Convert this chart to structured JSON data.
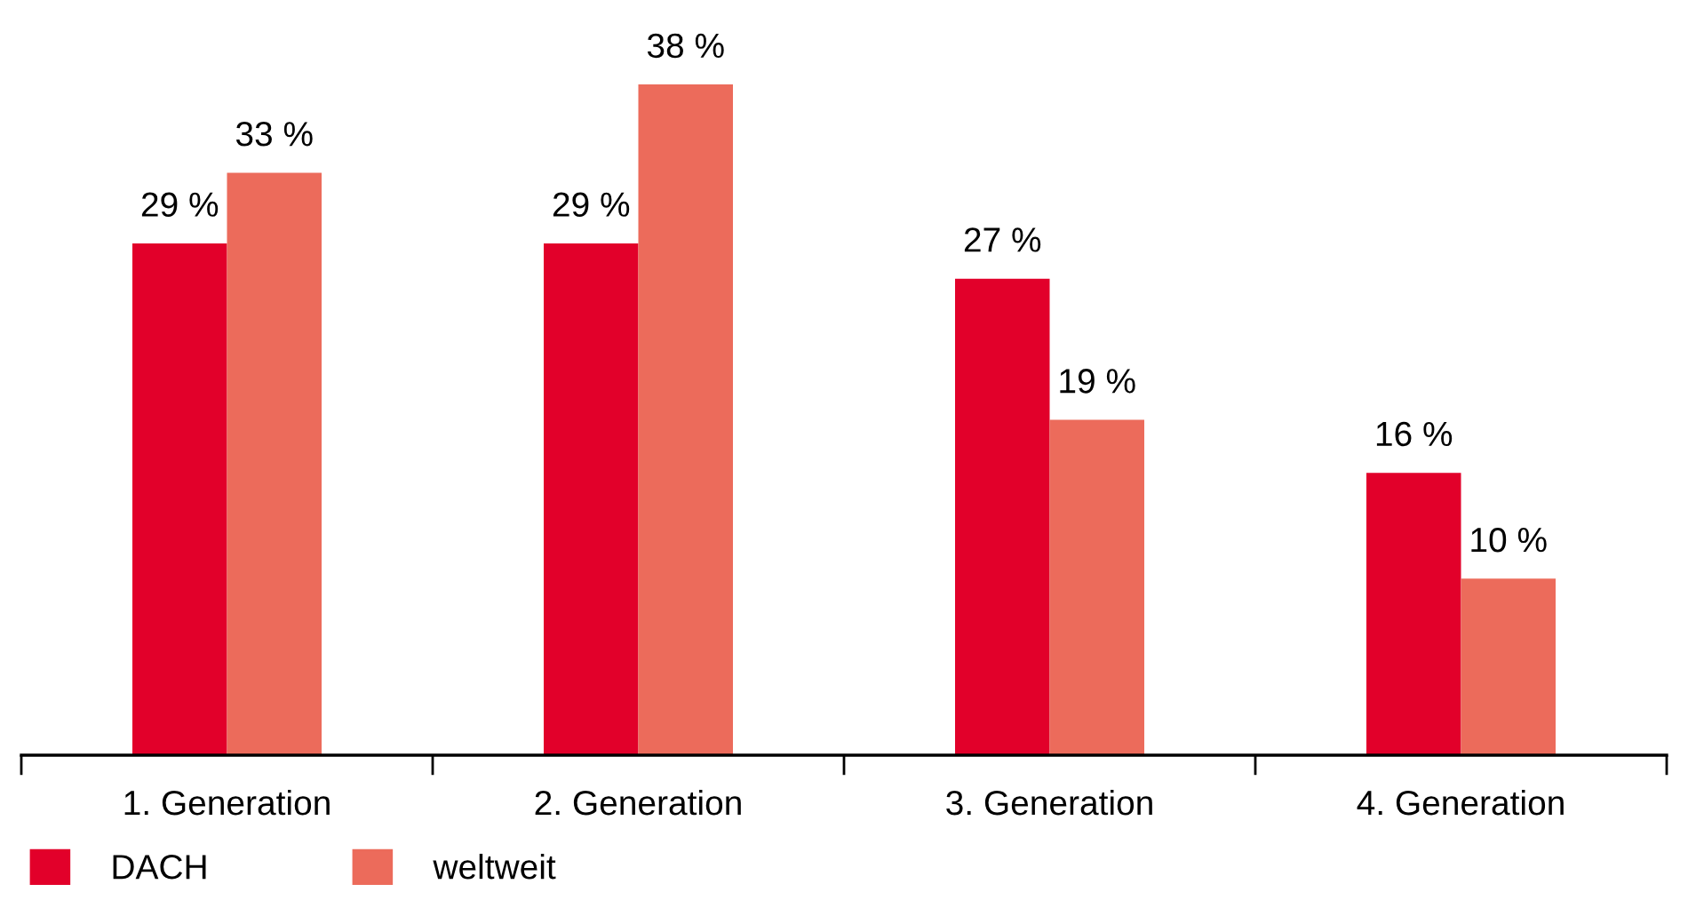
{
  "chart_data": {
    "type": "bar",
    "categories": [
      "1. Generation",
      "2. Generation",
      "3. Generation",
      "4. Generation"
    ],
    "series": [
      {
        "name": "DACH",
        "color": "#e2002a",
        "values": [
          29,
          29,
          27,
          16
        ],
        "value_labels": [
          "29 %",
          "29 %",
          "27 %",
          "16 %"
        ]
      },
      {
        "name": "weltweit",
        "color": "#ec6b5b",
        "values": [
          33,
          38,
          19,
          10
        ],
        "value_labels": [
          "33 %",
          "38 %",
          "19 %",
          "10 %"
        ]
      }
    ],
    "legend": "bottom left",
    "grid": false
  }
}
